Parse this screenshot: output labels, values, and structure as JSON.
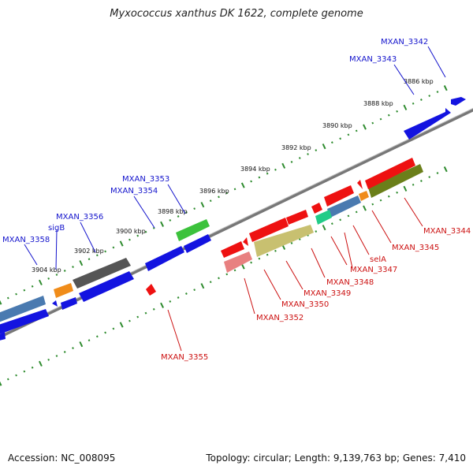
{
  "title": "Myxococcus xanthus DK 1622, complete genome",
  "footer": {
    "accession": "Accession: NC_008095",
    "summary": "Topology: circular; Length: 9,139,763 bp; Genes: 7,410"
  },
  "colors": {
    "backbone": "#888888",
    "tick": "#2e8b2e",
    "forward_label": "#1010cc",
    "reverse_label": "#cc1010"
  },
  "scale_labels": [
    "3886 kbp",
    "3888 kbp",
    "3890 kbp",
    "3892 kbp",
    "3894 kbp",
    "3896 kbp",
    "3898 kbp",
    "3900 kbp",
    "3902 kbp",
    "3904 kbp"
  ],
  "forward_genes": [
    "MXAN_3342",
    "MXAN_3343",
    "MXAN_3353",
    "MXAN_3354",
    "MXAN_3356",
    "sigB",
    "MXAN_3358"
  ],
  "reverse_genes": [
    "MXAN_3344",
    "MXAN_3345",
    "selA",
    "MXAN_3347",
    "MXAN_3348",
    "MXAN_3349",
    "MXAN_3350",
    "MXAN_3352",
    "MXAN_3355"
  ]
}
